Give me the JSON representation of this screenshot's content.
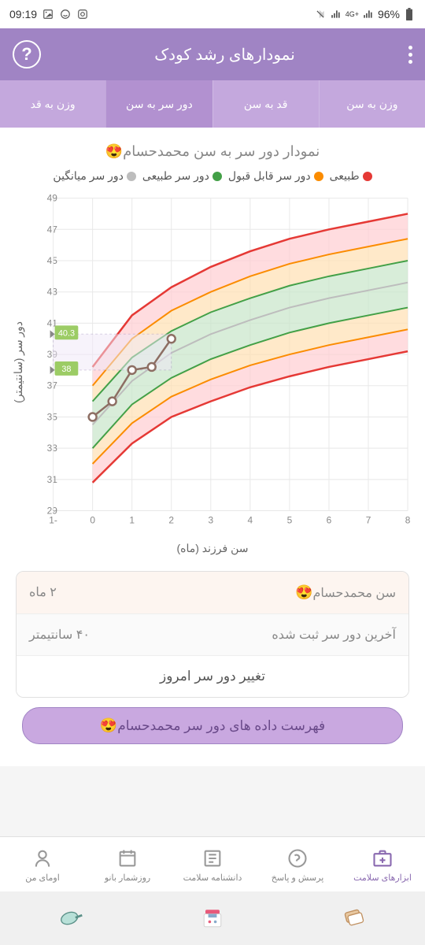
{
  "status": {
    "time": "09:19",
    "battery": "96%",
    "network": "4G+"
  },
  "header": {
    "title": "نمودارهای رشد کودک"
  },
  "tabs": [
    {
      "label": "وزن به سن",
      "active": false
    },
    {
      "label": "قد به سن",
      "active": false
    },
    {
      "label": "دور سر به سن",
      "active": true
    },
    {
      "label": "وزن به قد",
      "active": false
    }
  ],
  "chart": {
    "title_prefix": "نمودار دور سر به سن محمدحسام",
    "emoji": "😍",
    "legend": [
      {
        "label": "طبیعی",
        "color": "#e53935"
      },
      {
        "label": "دور سر قابل قبول",
        "color": "#fb8c00"
      },
      {
        "label": "دور سر طبیعی",
        "color": "#43a047"
      },
      {
        "label": "دور سر میانگین",
        "color": "#bdbdbd"
      }
    ],
    "y_label": "دور سر (سانتیمتر)",
    "x_label": "سن فرزند (ماه)",
    "y_min": 29,
    "y_max": 49,
    "y_step": 2,
    "x_min": -1,
    "x_max": 8,
    "x_step": 1,
    "bands": {
      "red_upper": [
        38.2,
        41.5,
        43.3,
        44.6,
        45.6,
        46.4,
        47.0,
        47.5,
        48.0
      ],
      "orange_upper": [
        37.0,
        40.0,
        41.8,
        43.0,
        44.0,
        44.8,
        45.4,
        45.9,
        46.4
      ],
      "green_upper": [
        36.0,
        38.8,
        40.5,
        41.7,
        42.6,
        43.4,
        44.0,
        44.5,
        45.0
      ],
      "median": [
        34.5,
        37.3,
        39.1,
        40.3,
        41.2,
        42.0,
        42.6,
        43.1,
        43.6
      ],
      "green_lower": [
        33.0,
        35.8,
        37.5,
        38.7,
        39.6,
        40.4,
        41.0,
        41.5,
        42.0
      ],
      "orange_lower": [
        32.0,
        34.6,
        36.3,
        37.4,
        38.3,
        39.0,
        39.6,
        40.1,
        40.6
      ],
      "red_lower": [
        30.8,
        33.3,
        35.0,
        36.0,
        36.9,
        37.6,
        38.2,
        38.7,
        39.2
      ]
    },
    "data_points": [
      {
        "x": 0,
        "y": 35.0
      },
      {
        "x": 0.5,
        "y": 36.0
      },
      {
        "x": 1.0,
        "y": 38.0
      },
      {
        "x": 1.5,
        "y": 38.2
      },
      {
        "x": 2.0,
        "y": 40.0
      }
    ],
    "markers": [
      {
        "label": "40.3",
        "value": 40.3,
        "color": "#9ccc65"
      },
      {
        "label": "38",
        "value": 38,
        "color": "#9ccc65"
      }
    ],
    "colors": {
      "red": "#e53935",
      "orange": "#fb8c00",
      "green": "#43a047",
      "gray": "#bdbdbd",
      "red_fill": "#ffcdd2",
      "orange_fill": "#ffe0b2",
      "green_fill": "#c8e6c9",
      "grid": "#e8e8e8",
      "data_line": "#8d6e63"
    }
  },
  "info": {
    "row1_label": "سن محمدحسام",
    "row1_value": "۲ ماه",
    "row2_label": "آخرین دور سر ثبت شده",
    "row2_value": "۴۰ سانتیمتر",
    "button": "تغییر دور سر امروز"
  },
  "data_button": "فهرست داده های دور سر محمدحسام",
  "nav": [
    {
      "label": "ابزارهای سلامت",
      "active": true
    },
    {
      "label": "پرسش و پاسخ",
      "active": false
    },
    {
      "label": "دانشنامه سلامت",
      "active": false
    },
    {
      "label": "روزشمار بانو",
      "active": false
    },
    {
      "label": "اومای من",
      "active": false
    }
  ]
}
